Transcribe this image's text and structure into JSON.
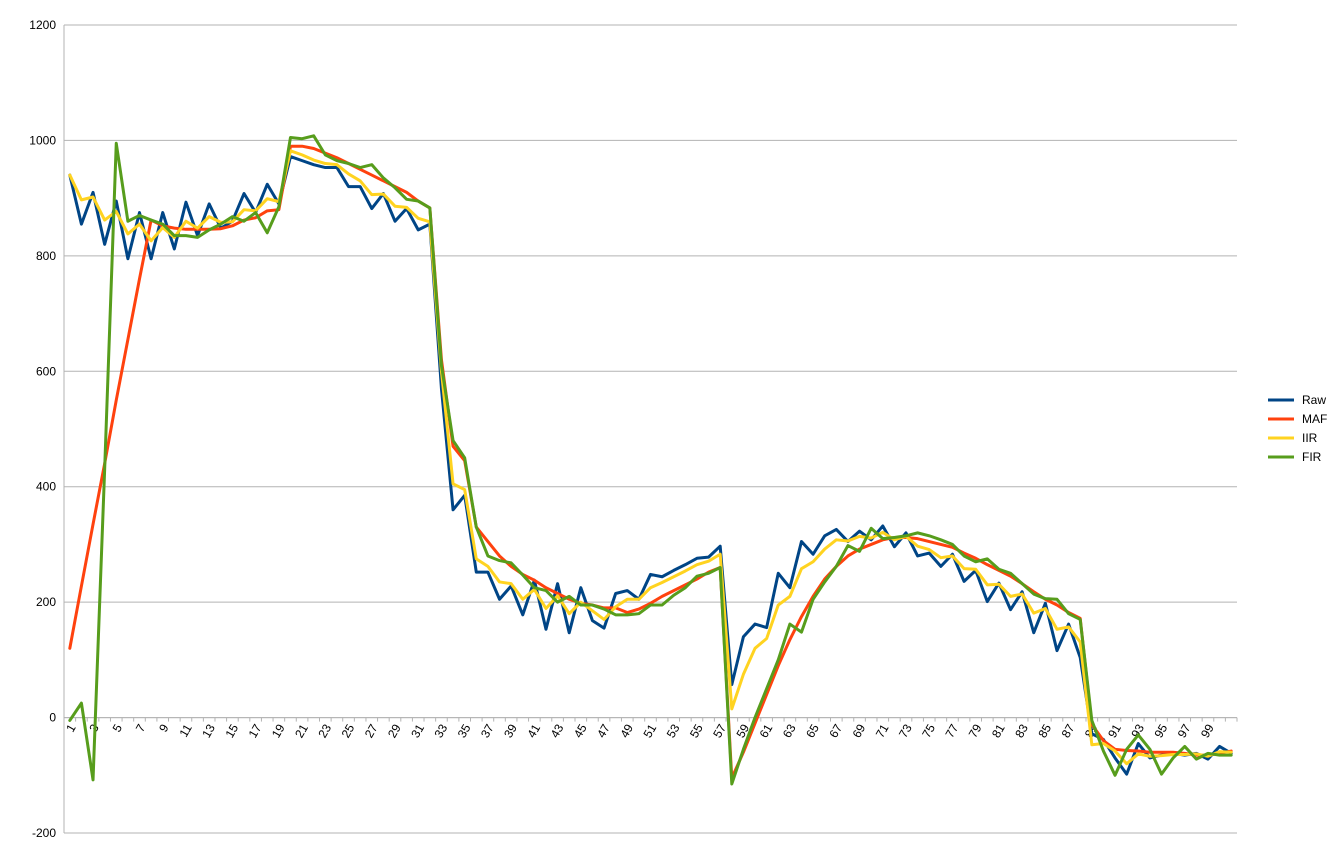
{
  "chart_data": {
    "type": "line",
    "title": "",
    "xlabel": "",
    "ylabel": "",
    "ylim": [
      -200,
      1200
    ],
    "yticks": [
      -200,
      0,
      200,
      400,
      600,
      800,
      1000,
      1200
    ],
    "xtick_labels": [
      "1",
      "3",
      "5",
      "7",
      "9",
      "11",
      "13",
      "15",
      "17",
      "19",
      "21",
      "23",
      "25",
      "27",
      "29",
      "31",
      "33",
      "35",
      "37",
      "39",
      "41",
      "43",
      "45",
      "47",
      "49",
      "51",
      "53",
      "55",
      "57",
      "59",
      "61",
      "63",
      "65",
      "67",
      "69",
      "71",
      "73",
      "75",
      "77",
      "79",
      "81",
      "83",
      "85",
      "87",
      "89",
      "91",
      "93",
      "95",
      "97",
      "99"
    ],
    "x": [
      1,
      2,
      3,
      4,
      5,
      6,
      7,
      8,
      9,
      10,
      11,
      12,
      13,
      14,
      15,
      16,
      17,
      18,
      19,
      20,
      21,
      22,
      23,
      24,
      25,
      26,
      27,
      28,
      29,
      30,
      31,
      32,
      33,
      34,
      35,
      36,
      37,
      38,
      39,
      40,
      41,
      42,
      43,
      44,
      45,
      46,
      47,
      48,
      49,
      50,
      51,
      52,
      53,
      54,
      55,
      56,
      57,
      58,
      59,
      60,
      61,
      62,
      63,
      64,
      65,
      66,
      67,
      68,
      69,
      70,
      71,
      72,
      73,
      74,
      75,
      76,
      77,
      78,
      79,
      80,
      81,
      82,
      83,
      84,
      85,
      86,
      87,
      88,
      89,
      90,
      91,
      92,
      93,
      94,
      95,
      96,
      97,
      98,
      99,
      100,
      101
    ],
    "grid": true,
    "legend_position": "right",
    "series": [
      {
        "name": "Raw",
        "color": "#004586",
        "values": [
          940,
          855,
          910,
          820,
          895,
          795,
          875,
          795,
          875,
          812,
          893,
          835,
          890,
          848,
          860,
          908,
          875,
          924,
          890,
          972,
          965,
          958,
          953,
          953,
          920,
          920,
          882,
          908,
          860,
          882,
          845,
          855,
          570,
          360,
          385,
          252,
          252,
          205,
          228,
          178,
          238,
          153,
          232,
          147,
          225,
          168,
          155,
          215,
          220,
          205,
          248,
          244,
          255,
          265,
          276,
          278,
          297,
          57,
          140,
          162,
          156,
          250,
          225,
          305,
          283,
          315,
          326,
          305,
          323,
          308,
          332,
          296,
          320,
          280,
          285,
          262,
          283,
          236,
          255,
          201,
          233,
          187,
          218,
          147,
          198,
          116,
          162,
          104,
          -28,
          -38,
          -70,
          -98,
          -45,
          -70,
          -65,
          -62,
          -65,
          -62,
          -72,
          -50,
          -62
        ]
      },
      {
        "name": "MAF",
        "color": "#ff420e",
        "values": [
          120,
          228,
          335,
          440,
          550,
          655,
          760,
          862,
          852,
          848,
          846,
          846,
          846,
          847,
          852,
          862,
          866,
          878,
          880,
          990,
          990,
          986,
          978,
          970,
          960,
          950,
          940,
          930,
          920,
          910,
          895,
          883,
          620,
          470,
          445,
          330,
          305,
          280,
          262,
          248,
          238,
          225,
          215,
          205,
          198,
          195,
          190,
          190,
          182,
          188,
          198,
          210,
          220,
          230,
          240,
          252,
          260,
          -105,
          -60,
          -10,
          40,
          90,
          135,
          175,
          210,
          240,
          262,
          280,
          292,
          300,
          308,
          312,
          312,
          310,
          305,
          300,
          295,
          285,
          276,
          265,
          255,
          245,
          232,
          218,
          205,
          195,
          182,
          172,
          -12,
          -40,
          -55,
          -57,
          -58,
          -60,
          -60,
          -60,
          -62,
          -65,
          -65,
          -62,
          -58
        ]
      },
      {
        "name": "IIR",
        "color": "#ffd320",
        "values": [
          940,
          897,
          902,
          862,
          877,
          838,
          855,
          826,
          849,
          832,
          860,
          848,
          868,
          858,
          859,
          880,
          878,
          899,
          894,
          982,
          975,
          966,
          960,
          958,
          942,
          930,
          906,
          907,
          886,
          884,
          865,
          859,
          600,
          405,
          395,
          275,
          262,
          235,
          232,
          205,
          222,
          189,
          211,
          180,
          200,
          185,
          170,
          192,
          205,
          205,
          225,
          234,
          244,
          254,
          265,
          271,
          283,
          15,
          75,
          120,
          137,
          195,
          210,
          258,
          270,
          292,
          308,
          306,
          314,
          311,
          321,
          308,
          314,
          297,
          291,
          277,
          280,
          258,
          257,
          230,
          231,
          210,
          214,
          181,
          189,
          153,
          157,
          131,
          -47,
          -45,
          -58,
          -80,
          -63,
          -67,
          -66,
          -64,
          -64,
          -63,
          -67,
          -59,
          -60
        ]
      },
      {
        "name": "FIR",
        "color": "#579d1c",
        "values": [
          -5,
          25,
          -108,
          430,
          995,
          860,
          870,
          862,
          855,
          835,
          835,
          832,
          845,
          855,
          868,
          860,
          875,
          840,
          885,
          1005,
          1003,
          1008,
          975,
          965,
          960,
          953,
          958,
          935,
          918,
          898,
          895,
          883,
          610,
          480,
          450,
          330,
          280,
          272,
          268,
          247,
          225,
          220,
          200,
          210,
          195,
          195,
          188,
          178,
          178,
          180,
          195,
          195,
          212,
          225,
          245,
          250,
          260,
          -115,
          -55,
          0,
          50,
          100,
          162,
          148,
          205,
          235,
          262,
          298,
          288,
          328,
          310,
          312,
          315,
          320,
          315,
          308,
          300,
          280,
          270,
          275,
          257,
          250,
          232,
          214,
          206,
          205,
          180,
          170,
          -5,
          -58,
          -100,
          -55,
          -30,
          -55,
          -98,
          -70,
          -50,
          -72,
          -62,
          -65,
          -65
        ]
      }
    ]
  }
}
